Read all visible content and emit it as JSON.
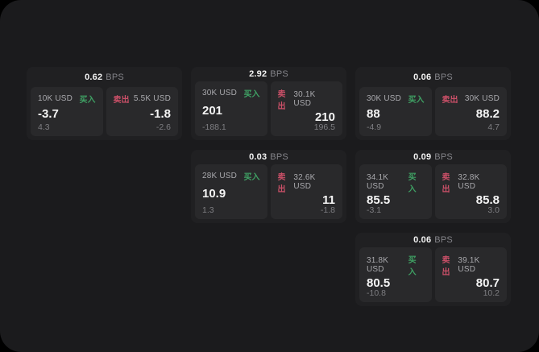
{
  "labels": {
    "buy": "买入",
    "sell": "卖出",
    "bps_unit": "BPS"
  },
  "colors": {
    "buy": "#3fa164",
    "sell": "#cb5068",
    "background": "#000000",
    "surface": "#1b1b1d",
    "card": "#202022",
    "panel": "#29292b"
  },
  "cards": [
    {
      "bps": "0.62",
      "grid": {
        "row": 1,
        "col": 1
      },
      "buy": {
        "amount": "10K USD",
        "value": "-3.7",
        "sub": "4.3"
      },
      "sell": {
        "amount": "5.5K USD",
        "value": "-1.8",
        "sub": "-2.6"
      }
    },
    {
      "bps": "2.92",
      "grid": {
        "row": 1,
        "col": 2
      },
      "buy": {
        "amount": "30K USD",
        "value": "201",
        "sub": "-188.1"
      },
      "sell": {
        "amount": "30.1K USD",
        "value": "210",
        "sub": "196.5"
      }
    },
    {
      "bps": "0.06",
      "grid": {
        "row": 1,
        "col": 3
      },
      "buy": {
        "amount": "30K USD",
        "value": "88",
        "sub": "-4.9"
      },
      "sell": {
        "amount": "30K USD",
        "value": "88.2",
        "sub": "4.7"
      }
    },
    {
      "bps": "0.03",
      "grid": {
        "row": 2,
        "col": 2
      },
      "buy": {
        "amount": "28K USD",
        "value": "10.9",
        "sub": "1.3"
      },
      "sell": {
        "amount": "32.6K USD",
        "value": "11",
        "sub": "-1.8"
      }
    },
    {
      "bps": "0.09",
      "grid": {
        "row": 2,
        "col": 3
      },
      "buy": {
        "amount": "34.1K USD",
        "value": "85.5",
        "sub": "-3.1"
      },
      "sell": {
        "amount": "32.8K USD",
        "value": "85.8",
        "sub": "3.0"
      }
    },
    {
      "bps": "0.06",
      "grid": {
        "row": 3,
        "col": 3
      },
      "buy": {
        "amount": "31.8K USD",
        "value": "80.5",
        "sub": "-10.8"
      },
      "sell": {
        "amount": "39.1K USD",
        "value": "80.7",
        "sub": "10.2"
      }
    }
  ]
}
